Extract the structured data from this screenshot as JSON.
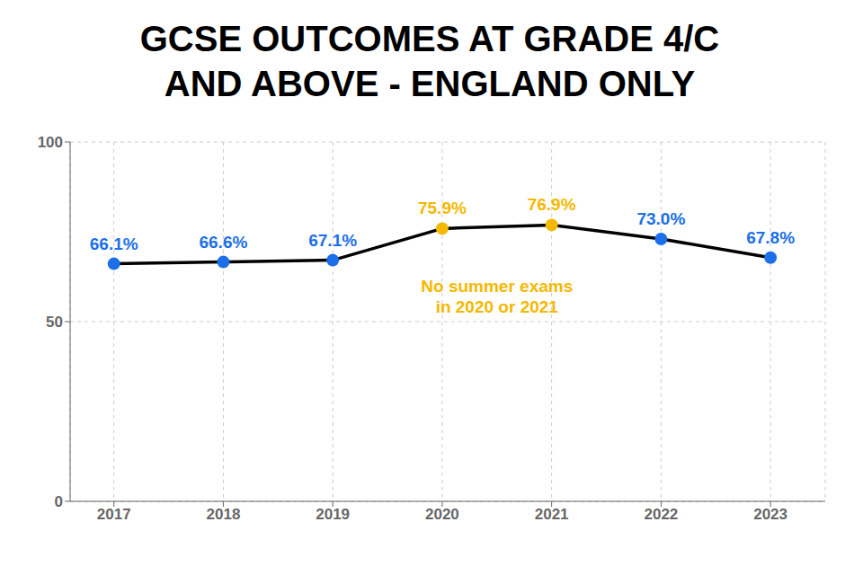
{
  "chart_data": {
    "type": "line",
    "title": "GCSE OUTCOMES AT GRADE 4/C\nAND ABOVE - ENGLAND ONLY",
    "x": [
      2017,
      2018,
      2019,
      2020,
      2021,
      2022,
      2023
    ],
    "values": [
      66.1,
      66.6,
      67.1,
      75.9,
      76.9,
      73.0,
      67.8
    ],
    "value_labels": [
      "66.1%",
      "66.6%",
      "67.1%",
      "75.9%",
      "76.9%",
      "73.0%",
      "67.8%"
    ],
    "color": "#000000",
    "colors": [
      "#1B6FE8",
      "#1B6FE8",
      "#1B6FE8",
      "#F5B800",
      "#F5B800",
      "#1B6FE8",
      "#1B6FE8"
    ],
    "marker": "circle",
    "data_labels": true,
    "xlim": [
      2016.6,
      2023.5
    ],
    "xticks": [
      2017,
      2018,
      2019,
      2020,
      2021,
      2022,
      2023
    ],
    "ylim": [
      0,
      100
    ],
    "yticks": [
      0,
      50,
      100
    ],
    "grid": true,
    "annotations": [
      {
        "text": "No summer exams\nin 2020 or 2021",
        "x": 2020.5,
        "y": 63.0,
        "color": "#F5B800"
      }
    ]
  }
}
